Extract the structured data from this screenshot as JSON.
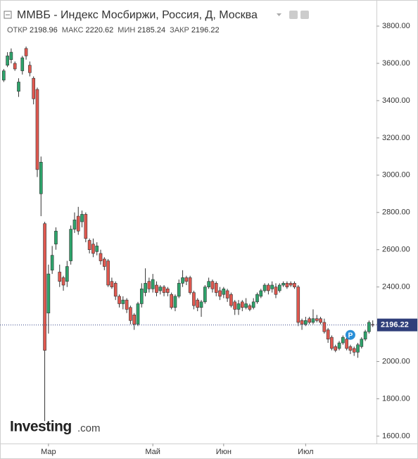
{
  "chart_data": {
    "type": "candlestick",
    "title": "ММВБ - Индекс Мосбиржи, Россия, Д, Москва",
    "ohlc_labels": [
      "ОТКР",
      "МАКС",
      "МИН",
      "ЗАКР"
    ],
    "marker_label": "P",
    "logo": {
      "main": "Investing",
      "suffix": ".com"
    },
    "up_color": "#2ea36b",
    "down_color": "#e0584f",
    "xlim": [
      -1,
      100
    ],
    "xticks": [
      {
        "value": 12,
        "label": "Мар"
      },
      {
        "value": 40,
        "label": "Май"
      },
      {
        "value": 59,
        "label": "Июн"
      },
      {
        "value": 81,
        "label": "Июл"
      }
    ],
    "ylim": [
      1560,
      3940
    ],
    "yticks": [
      {
        "value": 1600,
        "label": "1600.00"
      },
      {
        "value": 1800,
        "label": "1800.00"
      },
      {
        "value": 2000,
        "label": "2000.00"
      },
      {
        "value": 2200,
        "label": "2200.00"
      },
      {
        "value": 2400,
        "label": "2400.00"
      },
      {
        "value": 2600,
        "label": "2600.00"
      },
      {
        "value": 2800,
        "label": "2800.00"
      },
      {
        "value": 3000,
        "label": "3000.00"
      },
      {
        "value": 3200,
        "label": "3200.00"
      },
      {
        "value": 3400,
        "label": "3400.00"
      },
      {
        "value": 3600,
        "label": "3600.00"
      },
      {
        "value": 3800,
        "label": "3800.00"
      }
    ],
    "open": [
      3510,
      3590,
      3620,
      3600,
      3450,
      3560,
      3680,
      3590,
      3520,
      3460,
      2900,
      2740,
      2260,
      2490,
      2630,
      2480,
      2450,
      2430,
      2540,
      2710,
      2780,
      2750,
      2790,
      2650,
      2630,
      2590,
      2580,
      2550,
      2540,
      2430,
      2420,
      2350,
      2310,
      2330,
      2290,
      2250,
      2200,
      2310,
      2370,
      2430,
      2390,
      2410,
      2380,
      2400,
      2390,
      2360,
      2290,
      2350,
      2420,
      2450,
      2450,
      2370,
      2330,
      2290,
      2320,
      2400,
      2430,
      2420,
      2380,
      2360,
      2380,
      2360,
      2320,
      2280,
      2320,
      2290,
      2300,
      2290,
      2320,
      2350,
      2380,
      2410,
      2390,
      2400,
      2380,
      2410,
      2420,
      2420,
      2420,
      2400,
      2220,
      2200,
      2230,
      2210,
      2230,
      2230,
      2210,
      2170,
      2130,
      2080,
      2070,
      2100,
      2120,
      2080,
      2070,
      2050,
      2080,
      2120,
      2160,
      2198.96
    ],
    "high": [
      3570,
      3660,
      3680,
      3610,
      3520,
      3640,
      3690,
      3610,
      3530,
      3470,
      3100,
      2750,
      2520,
      2620,
      2720,
      2520,
      2460,
      2540,
      2730,
      2800,
      2830,
      2810,
      2800,
      2660,
      2660,
      2640,
      2600,
      2560,
      2550,
      2450,
      2430,
      2360,
      2350,
      2340,
      2300,
      2260,
      2320,
      2420,
      2500,
      2450,
      2470,
      2430,
      2410,
      2410,
      2400,
      2370,
      2360,
      2440,
      2490,
      2460,
      2460,
      2380,
      2340,
      2330,
      2410,
      2450,
      2440,
      2430,
      2400,
      2400,
      2390,
      2370,
      2330,
      2330,
      2330,
      2340,
      2310,
      2340,
      2370,
      2390,
      2420,
      2420,
      2430,
      2420,
      2420,
      2430,
      2430,
      2430,
      2430,
      2410,
      2230,
      2240,
      2240,
      2280,
      2250,
      2240,
      2230,
      2180,
      2140,
      2090,
      2110,
      2140,
      2130,
      2090,
      2080,
      2100,
      2130,
      2170,
      2220,
      2220.62
    ],
    "low": [
      3500,
      3580,
      3600,
      3560,
      3420,
      3540,
      3620,
      3530,
      3380,
      2990,
      2780,
      1680,
      2150,
      2470,
      2600,
      2400,
      2380,
      2400,
      2520,
      2690,
      2680,
      2720,
      2640,
      2580,
      2560,
      2570,
      2520,
      2490,
      2400,
      2390,
      2330,
      2290,
      2280,
      2260,
      2200,
      2170,
      2190,
      2290,
      2350,
      2370,
      2370,
      2350,
      2360,
      2350,
      2350,
      2280,
      2270,
      2340,
      2400,
      2410,
      2360,
      2280,
      2270,
      2240,
      2310,
      2390,
      2370,
      2350,
      2330,
      2340,
      2320,
      2290,
      2250,
      2250,
      2270,
      2280,
      2270,
      2280,
      2310,
      2340,
      2370,
      2360,
      2370,
      2340,
      2370,
      2400,
      2390,
      2400,
      2390,
      2190,
      2170,
      2190,
      2200,
      2200,
      2210,
      2200,
      2150,
      2100,
      2060,
      2050,
      2060,
      2090,
      2060,
      2040,
      2030,
      2020,
      2070,
      2110,
      2150,
      2185.24
    ],
    "close": [
      3560,
      3640,
      3660,
      3570,
      3500,
      3630,
      3640,
      3550,
      3410,
      3030,
      3070,
      2060,
      2470,
      2570,
      2700,
      2430,
      2410,
      2510,
      2710,
      2760,
      2700,
      2790,
      2660,
      2600,
      2580,
      2620,
      2540,
      2510,
      2410,
      2400,
      2350,
      2310,
      2330,
      2280,
      2220,
      2200,
      2310,
      2390,
      2420,
      2390,
      2440,
      2370,
      2400,
      2370,
      2370,
      2290,
      2350,
      2420,
      2450,
      2430,
      2370,
      2300,
      2290,
      2320,
      2400,
      2430,
      2390,
      2370,
      2350,
      2390,
      2340,
      2300,
      2280,
      2310,
      2290,
      2310,
      2280,
      2320,
      2360,
      2380,
      2410,
      2380,
      2410,
      2360,
      2410,
      2420,
      2400,
      2410,
      2400,
      2210,
      2200,
      2220,
      2210,
      2230,
      2220,
      2210,
      2160,
      2120,
      2070,
      2060,
      2100,
      2130,
      2070,
      2060,
      2050,
      2090,
      2120,
      2160,
      2210,
      2196.22
    ]
  }
}
